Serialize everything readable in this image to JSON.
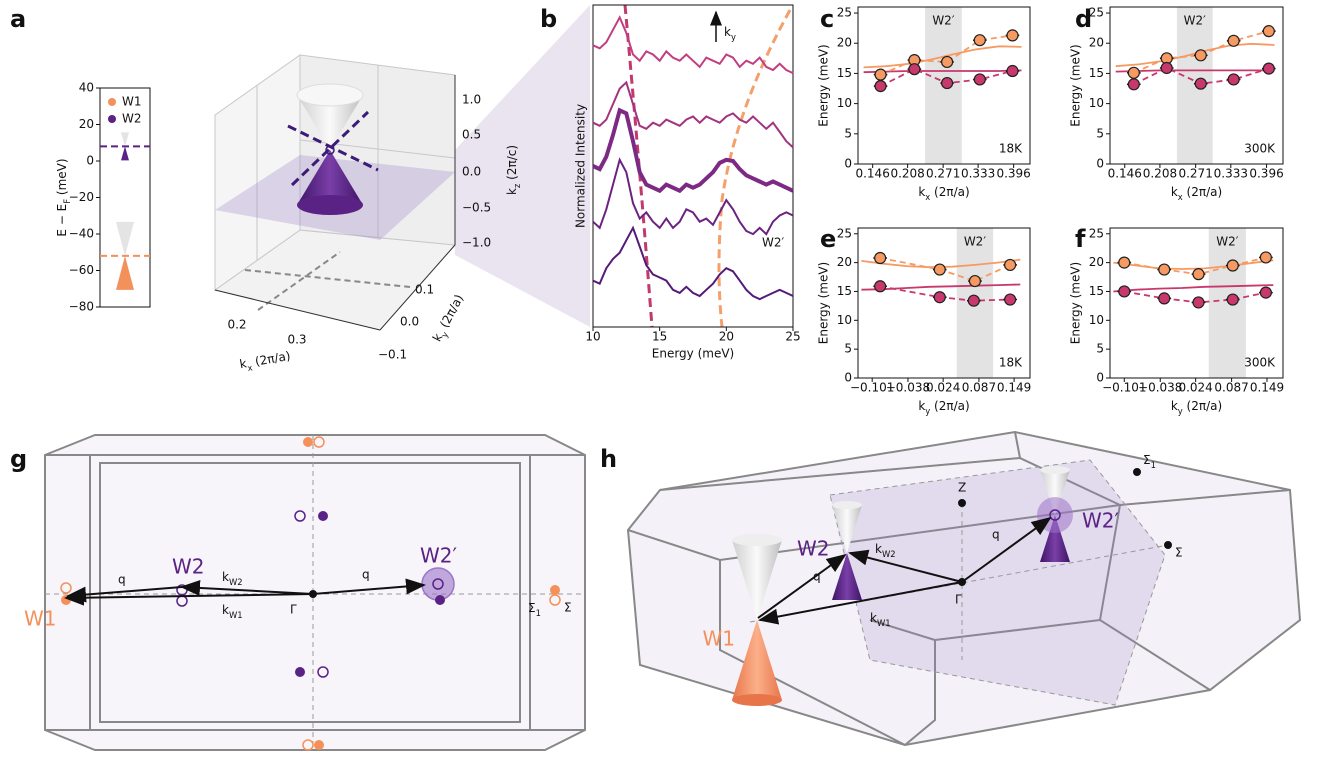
{
  "chart_data": [
    {
      "type": "levels",
      "y_label": [
        "E − E",
        "F",
        " (meV)"
      ],
      "ylim": [
        -80,
        40
      ],
      "yticks": [
        {
          "value": -80,
          "label": "−80"
        },
        {
          "value": -60,
          "label": "−60"
        },
        {
          "value": -40,
          "label": "−40"
        },
        {
          "value": -20,
          "label": "−20"
        },
        0,
        20,
        40
      ],
      "legend": "upper left",
      "series": [
        {
          "name": "W1",
          "color": "#f4905a",
          "values": [
            -52
          ]
        },
        {
          "name": "W2",
          "color": "#5a2285",
          "values": [
            8
          ]
        }
      ]
    },
    {
      "type": "line",
      "x_label": "Energy (meV)",
      "y_label": "Normalized Intensity",
      "xlim": [
        10,
        25
      ],
      "xticks": [
        10,
        15,
        20,
        25
      ],
      "ylim": [
        0,
        5.2
      ],
      "direction": [
        "k",
        "y"
      ],
      "peak_label": "W2′",
      "x": [
        10,
        10.5,
        11,
        11.5,
        12,
        12.5,
        13,
        13.5,
        14,
        14.5,
        15,
        15.5,
        16,
        16.5,
        17,
        17.5,
        18,
        18.5,
        19,
        19.5,
        20,
        20.5,
        21,
        21.5,
        22,
        22.5,
        23,
        23.5,
        24,
        24.5,
        25
      ],
      "series": [
        {
          "color": "#c23e80",
          "linewidth": 2,
          "values": [
            4.55,
            4.5,
            4.6,
            4.8,
            5.0,
            4.75,
            4.4,
            4.3,
            4.45,
            4.4,
            4.3,
            4.45,
            4.35,
            4.3,
            4.4,
            4.3,
            4.2,
            4.35,
            4.3,
            4.25,
            4.4,
            4.35,
            4.2,
            4.3,
            4.25,
            4.35,
            4.2,
            4.15,
            4.25,
            4.15,
            4.1
          ]
        },
        {
          "color": "#a3337f",
          "linewidth": 2,
          "values": [
            3.3,
            3.25,
            3.35,
            3.6,
            3.85,
            3.95,
            3.6,
            3.25,
            3.2,
            3.3,
            3.25,
            3.35,
            3.3,
            3.25,
            3.35,
            3.4,
            3.3,
            3.4,
            3.35,
            3.3,
            3.4,
            3.45,
            3.35,
            3.3,
            3.4,
            3.3,
            3.2,
            3.3,
            3.15,
            3.0,
            2.9
          ]
        },
        {
          "color": "#7d2a85",
          "linewidth": 4,
          "values": [
            2.6,
            2.55,
            2.75,
            3.1,
            3.5,
            3.45,
            3.0,
            2.5,
            2.3,
            2.25,
            2.2,
            2.3,
            2.25,
            2.2,
            2.3,
            2.25,
            2.3,
            2.4,
            2.5,
            2.65,
            2.7,
            2.68,
            2.55,
            2.45,
            2.4,
            2.35,
            2.3,
            2.35,
            2.3,
            2.25,
            2.2
          ]
        },
        {
          "color": "#6b2281",
          "linewidth": 2,
          "values": [
            1.7,
            1.6,
            1.9,
            2.3,
            2.7,
            2.5,
            2.0,
            1.75,
            1.85,
            1.7,
            1.6,
            1.75,
            1.6,
            1.7,
            1.9,
            1.85,
            1.7,
            1.75,
            1.65,
            1.85,
            2.05,
            1.9,
            1.7,
            1.55,
            1.5,
            1.6,
            1.5,
            1.7,
            1.8,
            1.85,
            1.8
          ]
        },
        {
          "color": "#541a78",
          "linewidth": 2,
          "values": [
            0.75,
            0.7,
            0.95,
            1.1,
            1.2,
            1.4,
            1.6,
            1.3,
            1.0,
            0.85,
            0.8,
            0.75,
            0.6,
            0.55,
            0.65,
            0.55,
            0.5,
            0.6,
            0.7,
            0.85,
            0.95,
            0.9,
            0.75,
            0.6,
            0.5,
            0.45,
            0.5,
            0.55,
            0.6,
            0.55,
            0.5
          ]
        }
      ]
    },
    {
      "type": "scatter",
      "x_label": [
        "k",
        "x",
        " (2π/a)"
      ],
      "y_label": "Energy (meV)",
      "xlim": [
        0.12,
        0.425
      ],
      "xticks": [
        0.146,
        0.208,
        0.271,
        0.333,
        0.396
      ],
      "ylim": [
        0,
        26
      ],
      "yticks": [
        0,
        5,
        10,
        15,
        20,
        25
      ],
      "shade": [
        0.239,
        0.304
      ],
      "label": "W2′",
      "temperature": "18K",
      "series": [
        {
          "color": "#f79a62",
          "line": "solid",
          "x": [
            0.13,
            0.17,
            0.21,
            0.25,
            0.29,
            0.33,
            0.37,
            0.41
          ],
          "values": [
            16.0,
            16.2,
            16.6,
            17.3,
            18.2,
            19.0,
            19.5,
            19.4
          ]
        },
        {
          "color": "#c8386d",
          "line": "solid",
          "x": [
            0.13,
            0.17,
            0.21,
            0.25,
            0.29,
            0.33,
            0.37,
            0.41
          ],
          "values": [
            15.2,
            15.3,
            15.4,
            15.4,
            15.4,
            15.4,
            15.4,
            15.5
          ]
        },
        {
          "color": "#f79a62",
          "line": "dashed",
          "marker": true,
          "x": [
            0.16,
            0.22,
            0.278,
            0.336,
            0.394
          ],
          "xerr": [
            0.012,
            0.012,
            0.012,
            0.012,
            0.012
          ],
          "values": [
            14.8,
            17.2,
            16.9,
            20.5,
            21.3
          ]
        },
        {
          "color": "#c8386d",
          "line": "dashed",
          "marker": true,
          "x": [
            0.16,
            0.22,
            0.278,
            0.336,
            0.394
          ],
          "xerr": [
            0.012,
            0.012,
            0.012,
            0.012,
            0.012
          ],
          "values": [
            12.9,
            15.7,
            13.4,
            14.0,
            15.4
          ]
        }
      ]
    },
    {
      "type": "scatter",
      "x_label": [
        "k",
        "x",
        " (2π/a)"
      ],
      "y_label": "Energy (meV)",
      "xlim": [
        0.12,
        0.425
      ],
      "xticks": [
        0.146,
        0.208,
        0.271,
        0.333,
        0.396
      ],
      "ylim": [
        0,
        26
      ],
      "yticks": [
        0,
        5,
        10,
        15,
        20,
        25
      ],
      "shade": [
        0.238,
        0.301
      ],
      "label": "W2′",
      "temperature": "300K",
      "series": [
        {
          "color": "#f79a62",
          "line": "solid",
          "x": [
            0.13,
            0.17,
            0.21,
            0.25,
            0.29,
            0.33,
            0.37,
            0.41
          ],
          "values": [
            16.2,
            16.5,
            17.0,
            17.8,
            18.8,
            19.6,
            19.9,
            19.7
          ]
        },
        {
          "color": "#c8386d",
          "line": "solid",
          "x": [
            0.13,
            0.17,
            0.21,
            0.25,
            0.29,
            0.33,
            0.37,
            0.41
          ],
          "values": [
            15.3,
            15.4,
            15.5,
            15.5,
            15.5,
            15.5,
            15.5,
            15.5
          ]
        },
        {
          "color": "#f79a62",
          "line": "dashed",
          "marker": true,
          "x": [
            0.162,
            0.22,
            0.28,
            0.338,
            0.4
          ],
          "xerr": [
            0.012,
            0.012,
            0.012,
            0.012,
            0.012
          ],
          "values": [
            15.1,
            17.5,
            18.0,
            20.4,
            22.0
          ]
        },
        {
          "color": "#c8386d",
          "line": "dashed",
          "marker": true,
          "x": [
            0.162,
            0.22,
            0.28,
            0.338,
            0.4
          ],
          "xerr": [
            0.012,
            0.012,
            0.012,
            0.012,
            0.012
          ],
          "values": [
            13.2,
            15.9,
            13.3,
            14.0,
            15.8
          ]
        }
      ]
    },
    {
      "type": "scatter",
      "x_label": [
        "k",
        "y",
        " (2π/a)"
      ],
      "y_label": "Energy (meV)",
      "xlim": [
        -0.126,
        0.177
      ],
      "xticks": [
        {
          "value": -0.101,
          "label": "−0.101"
        },
        {
          "value": -0.038,
          "label": "−0.038"
        },
        0.024,
        0.087,
        0.149
      ],
      "ylim": [
        0,
        26
      ],
      "yticks": [
        0,
        5,
        10,
        15,
        20,
        25
      ],
      "shade": [
        0.048,
        0.112
      ],
      "label": "W2′",
      "temperature": "18K",
      "series": [
        {
          "color": "#f79a62",
          "line": "solid",
          "x": [
            -0.12,
            -0.08,
            -0.04,
            0,
            0.04,
            0.08,
            0.12,
            0.16
          ],
          "values": [
            20.3,
            19.8,
            19.4,
            19.2,
            19.3,
            19.6,
            20.0,
            20.5
          ]
        },
        {
          "color": "#c8386d",
          "line": "solid",
          "x": [
            -0.12,
            -0.08,
            -0.04,
            0,
            0.04,
            0.08,
            0.12,
            0.16
          ],
          "values": [
            15.3,
            15.4,
            15.6,
            15.8,
            15.9,
            16.0,
            16.1,
            16.2
          ]
        },
        {
          "color": "#f79a62",
          "line": "dashed",
          "marker": true,
          "x": [
            -0.087,
            0.018,
            0.08,
            0.142
          ],
          "xerr": [
            0.012,
            0.012,
            0.012,
            0.012
          ],
          "values": [
            20.8,
            18.8,
            16.8,
            19.6
          ]
        },
        {
          "color": "#c8386d",
          "line": "dashed",
          "marker": true,
          "x": [
            -0.087,
            0.018,
            0.078,
            0.142
          ],
          "xerr": [
            0.012,
            0.012,
            0.012,
            0.012
          ],
          "values": [
            15.9,
            14.0,
            13.4,
            13.6
          ]
        }
      ]
    },
    {
      "type": "scatter",
      "x_label": [
        "k",
        "y",
        " (2π/a)"
      ],
      "y_label": "Energy (meV)",
      "xlim": [
        -0.126,
        0.177
      ],
      "xticks": [
        {
          "value": -0.101,
          "label": "−0.101"
        },
        {
          "value": -0.038,
          "label": "−0.038"
        },
        0.024,
        0.087,
        0.149
      ],
      "ylim": [
        0,
        26
      ],
      "yticks": [
        0,
        5,
        10,
        15,
        20,
        25
      ],
      "shade": [
        0.047,
        0.112
      ],
      "label": "W2′",
      "temperature": "300K",
      "series": [
        {
          "color": "#f79a62",
          "line": "solid",
          "x": [
            -0.12,
            -0.08,
            -0.04,
            0,
            0.04,
            0.08,
            0.12,
            0.16
          ],
          "values": [
            20.0,
            19.5,
            19.0,
            18.9,
            19.0,
            19.4,
            19.9,
            20.4
          ]
        },
        {
          "color": "#c8386d",
          "line": "solid",
          "x": [
            -0.12,
            -0.08,
            -0.04,
            0,
            0.04,
            0.08,
            0.12,
            0.16
          ],
          "values": [
            15.0,
            15.3,
            15.5,
            15.6,
            15.8,
            15.9,
            16.0,
            16.1
          ]
        },
        {
          "color": "#f79a62",
          "line": "dashed",
          "marker": true,
          "x": [
            -0.101,
            -0.031,
            0.029,
            0.089,
            0.147
          ],
          "xerr": [
            0.012,
            0.012,
            0.012,
            0.012,
            0.012
          ],
          "values": [
            20.0,
            18.8,
            18.0,
            19.5,
            20.9
          ]
        },
        {
          "color": "#c8386d",
          "line": "dashed",
          "marker": true,
          "x": [
            -0.101,
            -0.031,
            0.029,
            0.089,
            0.147
          ],
          "xerr": [
            0.012,
            0.012,
            0.012,
            0.012,
            0.012
          ],
          "values": [
            15.0,
            13.8,
            13.1,
            13.6,
            14.8
          ]
        }
      ]
    }
  ],
  "figure": {
    "panels": [
      "a",
      "b",
      "c",
      "d",
      "e",
      "f",
      "g",
      "h"
    ],
    "a3d": {
      "kz_ticks": [
        "1.0",
        "0.5",
        "0.0",
        "−0.5",
        "−1.0"
      ],
      "kz_label": [
        "k",
        "z",
        " (2π/c)"
      ],
      "kx_ticks": [
        "0.2",
        "0.3"
      ],
      "kx_label": [
        "k",
        "x",
        " (2π/a)"
      ],
      "ky_ticks": [
        "0.1",
        "0.0",
        "−0.1"
      ],
      "ky_label": [
        "k",
        "y",
        " (2π/a)"
      ]
    },
    "g": {
      "w1": "W1",
      "w2": "W2",
      "w2p": "W2′",
      "k_w2": [
        "k",
        "W2"
      ],
      "k_w1": [
        "k",
        "W1"
      ],
      "q1": "q",
      "q2": "q",
      "gamma": "Γ",
      "sigma1": [
        "Σ",
        "1"
      ],
      "sigma": "Σ"
    },
    "h": {
      "w1": "W1",
      "w2": "W2",
      "w2p": "W2′",
      "k_w2": [
        "k",
        "W2"
      ],
      "k_w1": [
        "k",
        "W1"
      ],
      "q1": "q",
      "q2": "q",
      "gamma": "Γ",
      "sigma1": [
        "Σ",
        "1"
      ],
      "sigma": "Σ",
      "z": "Z"
    }
  }
}
